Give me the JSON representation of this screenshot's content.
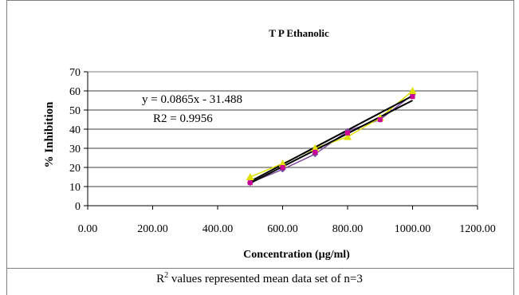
{
  "chart_data": {
    "type": "scatter",
    "title": "T P Ethanolic",
    "xlabel": "Concentration (µg/ml)",
    "ylabel": "% Inhibition",
    "xlim": [
      0,
      1200
    ],
    "ylim": [
      0,
      70
    ],
    "xticks": [
      "0.00",
      "200.00",
      "400.00",
      "600.00",
      "800.00",
      "1000.00",
      "1200.00"
    ],
    "yticks": [
      "0",
      "10",
      "20",
      "30",
      "40",
      "50",
      "60",
      "70"
    ],
    "grid": "horizontal",
    "series": [
      {
        "color": "#7b4a9c",
        "marker": "diamond",
        "connected": true,
        "x": [
          500,
          600,
          700,
          800,
          900,
          1000
        ],
        "y": [
          12,
          19,
          27,
          39,
          45,
          58
        ]
      },
      {
        "color": "#e0e000",
        "marker": "triangle",
        "connected": true,
        "x": [
          500,
          600,
          700,
          800,
          900,
          1000
        ],
        "y": [
          15,
          22,
          30,
          36,
          46,
          60
        ]
      },
      {
        "color": "#cc0099",
        "marker": "square",
        "connected": false,
        "x": [
          500,
          600,
          700,
          800,
          900,
          1000
        ],
        "y": [
          12,
          20,
          28,
          38,
          45,
          57
        ]
      }
    ],
    "trendlines": [
      {
        "color": "#000000",
        "slope": 0.0865,
        "intercept": -31.488,
        "x_range": [
          500,
          1000
        ]
      },
      {
        "color": "#000000",
        "slope": 0.0895,
        "intercept": -32.1,
        "x_range": [
          500,
          1000
        ]
      }
    ],
    "annotations": {
      "equation": "y = 0.0865x - 31.488",
      "r2": "R2 = 0.9956"
    }
  },
  "caption": {
    "r": "R",
    "sup": "2",
    "rest": " values represented mean data set of n=3"
  }
}
